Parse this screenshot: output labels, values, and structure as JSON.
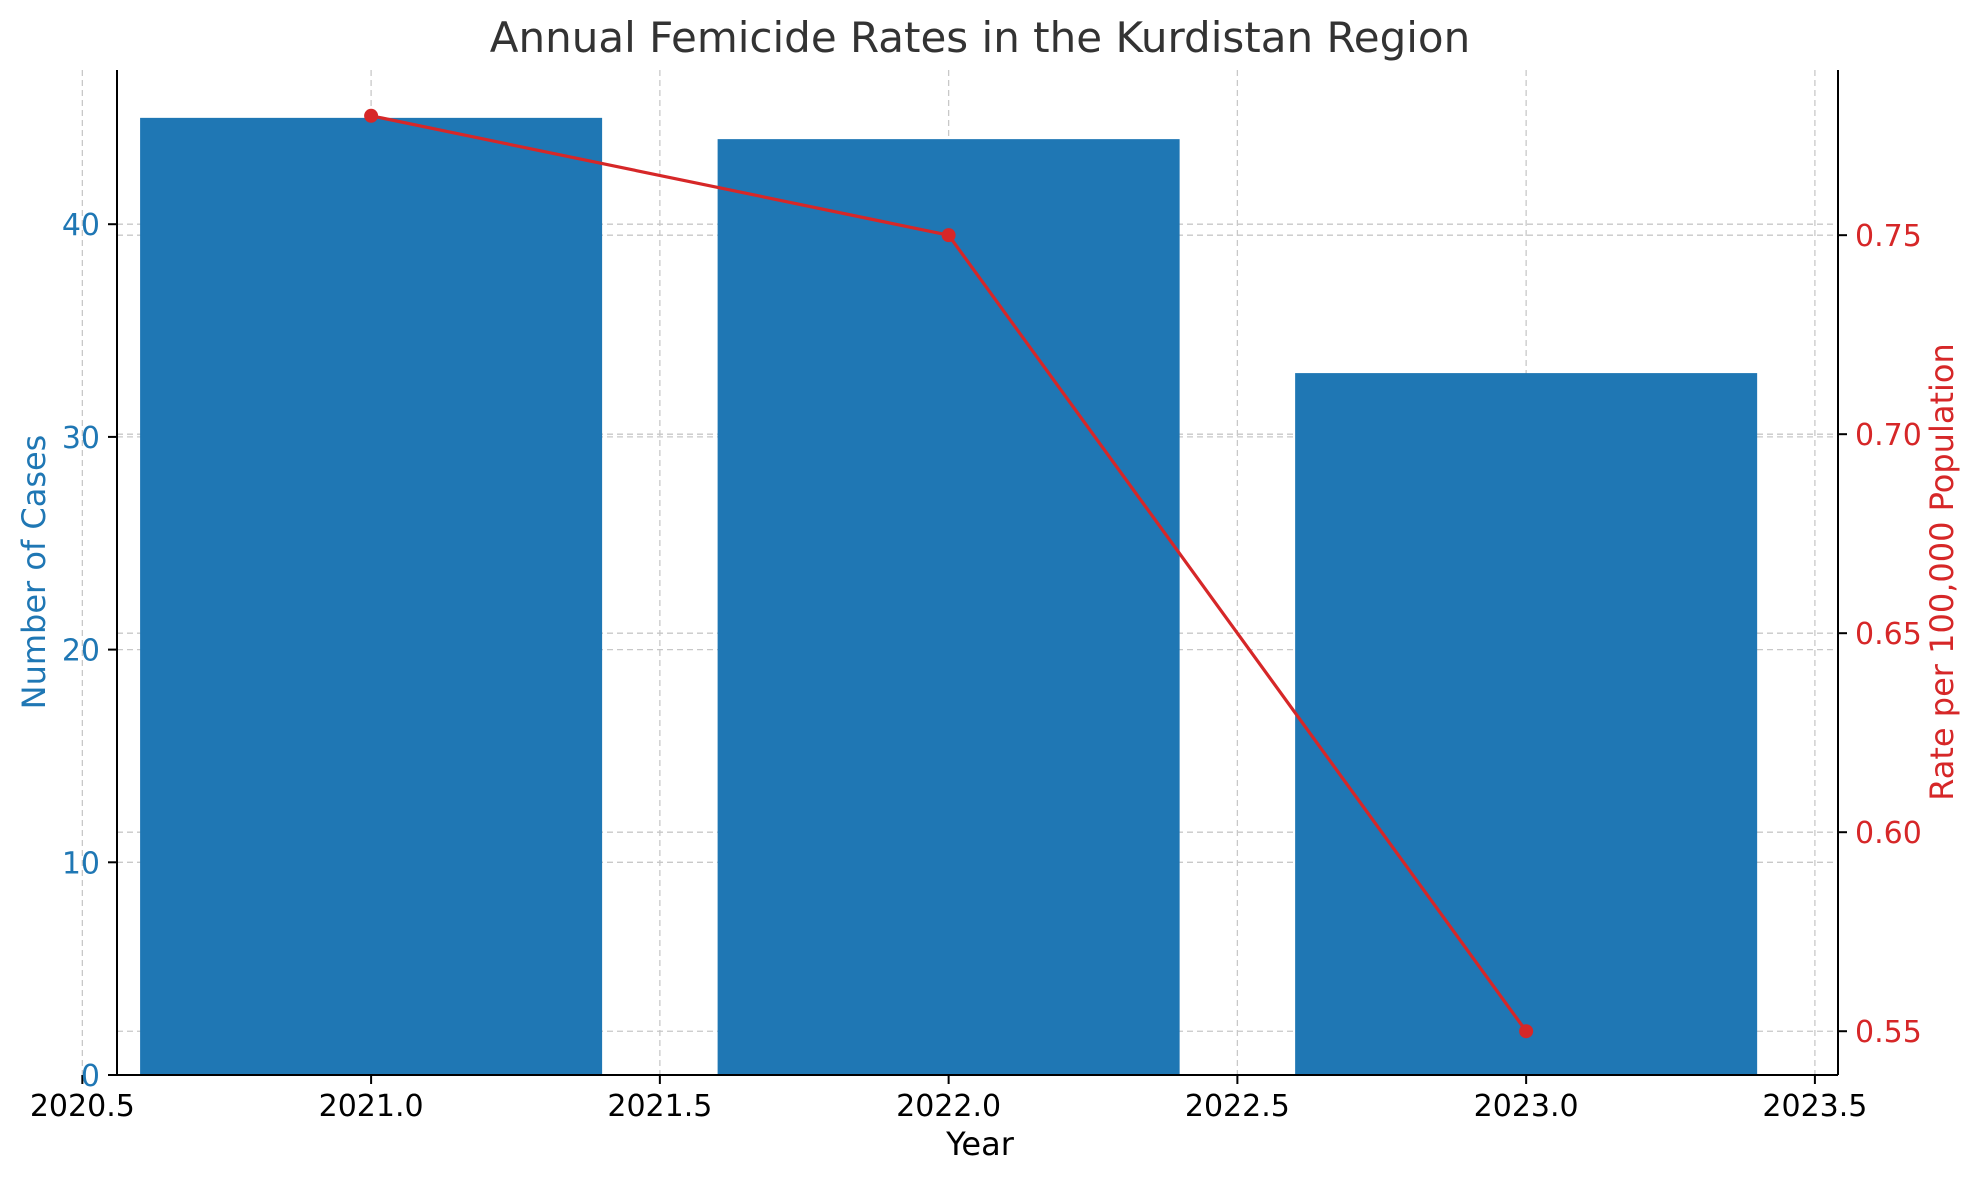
{
  "chart_data": {
    "type": "bar",
    "title": "Annual Femicide Rates in the Kurdistan Region",
    "xlabel": "Year",
    "ylabel": "Number of Cases",
    "y2label": "Rate per 100,000 Population",
    "x": [
      2021,
      2022,
      2023
    ],
    "bar_width": 0.8,
    "xlim": [
      2020.56,
      2023.54
    ],
    "ylim": [
      0,
      47.25
    ],
    "y2lim": [
      0.539,
      0.7915
    ],
    "xticks": [
      "2020.5",
      "2021.0",
      "2021.5",
      "2022.0",
      "2022.5",
      "2023.0",
      "2023.5"
    ],
    "xtick_values": [
      2020.5,
      2021.0,
      2021.5,
      2022.0,
      2022.5,
      2023.0,
      2023.5
    ],
    "yticks": [
      "0",
      "10",
      "20",
      "30",
      "40"
    ],
    "ytick_values": [
      0,
      10,
      20,
      30,
      40
    ],
    "y2ticks": [
      "0.55",
      "0.60",
      "0.65",
      "0.70",
      "0.75"
    ],
    "y2tick_values": [
      0.55,
      0.6,
      0.65,
      0.7,
      0.75
    ],
    "grid": true,
    "series": [
      {
        "type": "bar",
        "axis": "left",
        "values": [
          45,
          44,
          33
        ],
        "color": "#1f77b4"
      },
      {
        "type": "line",
        "axis": "right",
        "values": [
          0.78,
          0.75,
          0.55
        ],
        "color": "#d62728",
        "marker": "circle"
      }
    ],
    "colors": {
      "left_axis": "#1f77b4",
      "right_axis": "#d62728",
      "title": "#333333"
    }
  }
}
